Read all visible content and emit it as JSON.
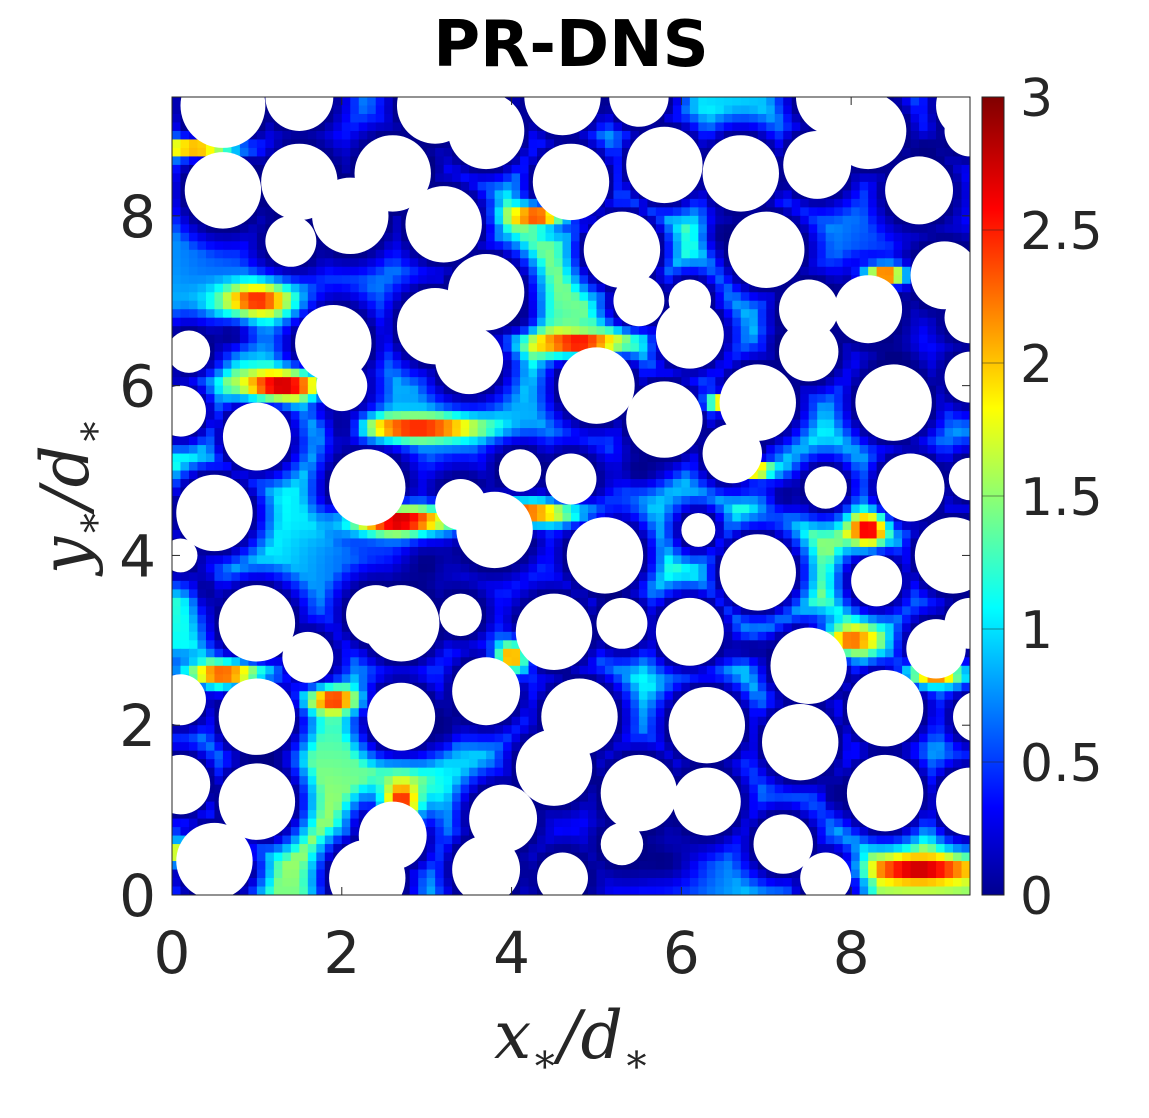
{
  "chart_data": {
    "type": "heatmap",
    "title": "PR-DNS",
    "xlabel": "x",
    "xlabel_sub": "∗",
    "xlabel_den": "d",
    "xlabel_den_sub": "∗",
    "ylabel": "y",
    "ylabel_sub": "∗",
    "ylabel_den": "d",
    "ylabel_den_sub": "∗",
    "xlim": [
      0,
      9.4
    ],
    "ylim": [
      0,
      9.4
    ],
    "x_ticks": [
      0,
      2,
      4,
      6,
      8
    ],
    "y_ticks": [
      0,
      2,
      4,
      6,
      8
    ],
    "x_tick_labels": [
      "0",
      "2",
      "4",
      "6",
      "8"
    ],
    "y_tick_labels": [
      "0",
      "2",
      "4",
      "6",
      "8"
    ],
    "colorbar": {
      "colormap": "jet",
      "range": [
        0,
        3
      ],
      "ticks": [
        0,
        0.5,
        1,
        1.5,
        2,
        2.5,
        3
      ],
      "tick_labels": [
        "0",
        "0.5",
        "1",
        "1.5",
        "2",
        "2.5",
        "3"
      ]
    },
    "grid": false,
    "colors": {
      "jet": [
        "#00008f",
        "#0000ff",
        "#0080ff",
        "#00ffff",
        "#80ff80",
        "#ffff00",
        "#ff8000",
        "#ff0000",
        "#800000"
      ],
      "background": "#ffffff",
      "particle": "#ffffff"
    },
    "particles": [
      [
        0.6,
        9.3,
        0.5
      ],
      [
        1.5,
        9.4,
        0.4
      ],
      [
        3.1,
        9.3,
        0.45
      ],
      [
        4.6,
        9.4,
        0.45
      ],
      [
        5.5,
        9.4,
        0.35
      ],
      [
        7.8,
        9.4,
        0.45
      ],
      [
        9.4,
        9.3,
        0.4
      ],
      [
        3.7,
        9.0,
        0.45
      ],
      [
        8.2,
        9.0,
        0.45
      ],
      [
        9.4,
        9.0,
        0.3
      ],
      [
        0.6,
        8.3,
        0.45
      ],
      [
        1.5,
        8.4,
        0.45
      ],
      [
        2.6,
        8.5,
        0.45
      ],
      [
        4.7,
        8.4,
        0.45
      ],
      [
        5.8,
        8.6,
        0.45
      ],
      [
        6.7,
        8.5,
        0.45
      ],
      [
        7.6,
        8.6,
        0.4
      ],
      [
        8.8,
        8.3,
        0.4
      ],
      [
        2.1,
        8.0,
        0.45
      ],
      [
        3.2,
        7.9,
        0.45
      ],
      [
        5.3,
        7.6,
        0.45
      ],
      [
        7.0,
        7.6,
        0.45
      ],
      [
        1.4,
        7.7,
        0.3
      ],
      [
        3.7,
        7.1,
        0.45
      ],
      [
        5.5,
        7.0,
        0.3
      ],
      [
        6.1,
        7.0,
        0.25
      ],
      [
        7.5,
        6.9,
        0.35
      ],
      [
        9.1,
        7.3,
        0.4
      ],
      [
        9.4,
        6.8,
        0.3
      ],
      [
        1.9,
        6.5,
        0.45
      ],
      [
        3.1,
        6.7,
        0.45
      ],
      [
        6.1,
        6.6,
        0.4
      ],
      [
        8.2,
        6.9,
        0.4
      ],
      [
        0.2,
        6.4,
        0.25
      ],
      [
        2.0,
        6.0,
        0.3
      ],
      [
        3.5,
        6.3,
        0.4
      ],
      [
        5.0,
        6.0,
        0.45
      ],
      [
        5.8,
        5.6,
        0.45
      ],
      [
        6.9,
        5.8,
        0.45
      ],
      [
        8.5,
        5.8,
        0.45
      ],
      [
        7.5,
        6.4,
        0.35
      ],
      [
        9.4,
        6.1,
        0.3
      ],
      [
        0.1,
        5.7,
        0.3
      ],
      [
        1.0,
        5.4,
        0.4
      ],
      [
        2.3,
        4.8,
        0.45
      ],
      [
        3.4,
        4.6,
        0.3
      ],
      [
        4.1,
        5.0,
        0.25
      ],
      [
        4.7,
        4.9,
        0.3
      ],
      [
        6.6,
        5.2,
        0.35
      ],
      [
        6.2,
        4.3,
        0.2
      ],
      [
        7.7,
        4.8,
        0.25
      ],
      [
        8.7,
        4.8,
        0.4
      ],
      [
        9.4,
        4.9,
        0.25
      ],
      [
        0.5,
        4.5,
        0.45
      ],
      [
        2.4,
        3.3,
        0.35
      ],
      [
        3.8,
        4.3,
        0.45
      ],
      [
        5.1,
        4.0,
        0.45
      ],
      [
        6.9,
        3.8,
        0.45
      ],
      [
        8.3,
        3.7,
        0.3
      ],
      [
        9.2,
        4.0,
        0.45
      ],
      [
        0.1,
        4.0,
        0.2
      ],
      [
        1.0,
        3.2,
        0.45
      ],
      [
        2.7,
        3.2,
        0.45
      ],
      [
        3.4,
        3.3,
        0.25
      ],
      [
        4.5,
        3.1,
        0.45
      ],
      [
        5.3,
        3.2,
        0.3
      ],
      [
        6.1,
        3.1,
        0.4
      ],
      [
        7.5,
        2.7,
        0.45
      ],
      [
        9.0,
        2.9,
        0.35
      ],
      [
        9.4,
        3.2,
        0.3
      ],
      [
        0.1,
        2.3,
        0.3
      ],
      [
        1.0,
        2.1,
        0.45
      ],
      [
        1.6,
        2.8,
        0.3
      ],
      [
        2.7,
        2.1,
        0.4
      ],
      [
        3.7,
        2.4,
        0.4
      ],
      [
        4.8,
        2.1,
        0.45
      ],
      [
        6.3,
        2.0,
        0.45
      ],
      [
        8.4,
        2.2,
        0.45
      ],
      [
        9.5,
        2.1,
        0.3
      ],
      [
        0.1,
        1.3,
        0.35
      ],
      [
        1.0,
        1.1,
        0.45
      ],
      [
        2.6,
        0.7,
        0.4
      ],
      [
        3.9,
        0.9,
        0.4
      ],
      [
        4.5,
        1.5,
        0.45
      ],
      [
        5.5,
        1.2,
        0.45
      ],
      [
        6.3,
        1.1,
        0.4
      ],
      [
        7.4,
        1.8,
        0.45
      ],
      [
        8.4,
        1.2,
        0.45
      ],
      [
        9.4,
        1.1,
        0.4
      ],
      [
        0.5,
        0.4,
        0.45
      ],
      [
        2.3,
        0.2,
        0.45
      ],
      [
        3.7,
        0.3,
        0.4
      ],
      [
        4.6,
        0.2,
        0.3
      ],
      [
        5.3,
        0.6,
        0.25
      ],
      [
        7.2,
        0.6,
        0.35
      ],
      [
        7.7,
        0.2,
        0.3
      ]
    ],
    "hotspots": [
      [
        1.0,
        7.0,
        0.45,
        0.22,
        2.6
      ],
      [
        1.3,
        6.0,
        0.55,
        0.18,
        2.9
      ],
      [
        2.7,
        4.4,
        0.65,
        0.18,
        3.0
      ],
      [
        2.9,
        5.5,
        0.8,
        0.15,
        2.7
      ],
      [
        4.1,
        4.5,
        0.7,
        0.15,
        2.6
      ],
      [
        4.8,
        6.5,
        0.6,
        0.15,
        2.8
      ],
      [
        4.3,
        8.0,
        0.35,
        0.12,
        2.7
      ],
      [
        6.9,
        5.0,
        0.25,
        0.1,
        2.8
      ],
      [
        8.4,
        7.3,
        0.25,
        0.12,
        2.7
      ],
      [
        8.2,
        4.3,
        0.22,
        0.2,
        2.8
      ],
      [
        8.0,
        3.0,
        0.35,
        0.2,
        2.4
      ],
      [
        0.3,
        0.5,
        0.45,
        0.15,
        2.6
      ],
      [
        8.8,
        0.3,
        0.6,
        0.15,
        2.9
      ],
      [
        0.3,
        8.8,
        0.5,
        0.1,
        2.6
      ],
      [
        1.9,
        2.3,
        0.3,
        0.15,
        2.6
      ],
      [
        2.7,
        1.1,
        0.25,
        0.3,
        2.6
      ],
      [
        0.6,
        2.6,
        0.5,
        0.15,
        2.5
      ],
      [
        6.5,
        5.8,
        0.2,
        0.1,
        2.5
      ],
      [
        9.0,
        2.6,
        0.35,
        0.15,
        2.5
      ],
      [
        4.0,
        2.8,
        0.2,
        0.2,
        2.3
      ]
    ],
    "coolspots": [
      [
        2.9,
        8.6,
        0.3,
        0.2
      ],
      [
        5.5,
        5.0,
        0.4,
        0.3
      ],
      [
        7.3,
        6.5,
        0.3,
        0.4
      ],
      [
        7.2,
        4.7,
        0.3,
        0.3
      ],
      [
        3.0,
        3.9,
        0.3,
        0.3
      ],
      [
        6.5,
        7.8,
        0.3,
        0.3
      ],
      [
        6.8,
        2.9,
        0.4,
        0.2
      ],
      [
        5.8,
        0.4,
        0.4,
        0.3
      ],
      [
        1.1,
        1.6,
        0.3,
        0.2
      ],
      [
        2.0,
        5.5,
        0.25,
        0.3
      ],
      [
        8.5,
        6.3,
        0.3,
        0.3
      ],
      [
        0.7,
        6.6,
        0.3,
        0.2
      ],
      [
        3.2,
        2.0,
        0.25,
        0.3
      ],
      [
        7.8,
        1.2,
        0.2,
        0.3
      ],
      [
        4.0,
        6.8,
        0.3,
        0.2
      ],
      [
        5.2,
        3.5,
        0.2,
        0.3
      ],
      [
        8.9,
        8.8,
        0.3,
        0.2
      ],
      [
        0.4,
        3.6,
        0.2,
        0.3
      ]
    ]
  }
}
